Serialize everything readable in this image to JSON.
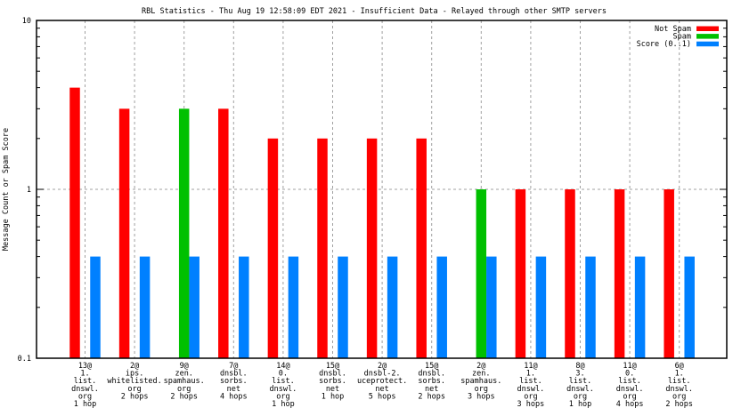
{
  "chart_data": {
    "type": "bar",
    "title": "RBL Statistics - Thu Aug 19 12:58:09 EDT 2021 - Insufficient Data - Relayed through other SMTP servers",
    "xlabel": "",
    "ylabel": "Message Count or Spam Score",
    "yscale": "log",
    "ylim": [
      0.1,
      10
    ],
    "yticks": [
      {
        "value": 10,
        "label": "10"
      },
      {
        "value": 1,
        "label": "1"
      },
      {
        "value": 0.1,
        "label": "0.1"
      }
    ],
    "grid": true,
    "legend_position": "top-right",
    "categories": [
      [
        "13@",
        "1.",
        "list.",
        "dnswl.",
        "org",
        "1 hop"
      ],
      [
        "2@",
        "ips.",
        "whitelisted.",
        "org",
        "2 hops"
      ],
      [
        "9@",
        "zen.",
        "spamhaus.",
        "org",
        "2 hops"
      ],
      [
        "7@",
        "dnsbl.",
        "sorbs.",
        "net",
        "4 hops"
      ],
      [
        "14@",
        "0.",
        "list.",
        "dnswl.",
        "org",
        "1 hop"
      ],
      [
        "15@",
        "dnsbl.",
        "sorbs.",
        "net",
        "1 hop"
      ],
      [
        "2@",
        "dnsbl-2.",
        "uceprotect.",
        "net",
        "5 hops"
      ],
      [
        "15@",
        "dnsbl.",
        "sorbs.",
        "net",
        "2 hops"
      ],
      [
        "2@",
        "zen.",
        "spamhaus.",
        "org",
        "3 hops"
      ],
      [
        "11@",
        "1.",
        "list.",
        "dnswl.",
        "org",
        "3 hops"
      ],
      [
        "8@",
        "3.",
        "list.",
        "dnswl.",
        "org",
        "1 hop"
      ],
      [
        "11@",
        "0.",
        "list.",
        "dnswl.",
        "org",
        "4 hops"
      ],
      [
        "6@",
        "1.",
        "list.",
        "dnswl.",
        "org",
        "2 hops"
      ]
    ],
    "series": [
      {
        "name": "Not Spam",
        "color": "#ff0000",
        "values": [
          4,
          3,
          0,
          3,
          2,
          2,
          2,
          2,
          0,
          1,
          1,
          1,
          1
        ]
      },
      {
        "name": "Spam",
        "color": "#00c000",
        "values": [
          0,
          0,
          3,
          0,
          0,
          0,
          0,
          0,
          1,
          0,
          0,
          0,
          0
        ]
      },
      {
        "name": "Score (0..1)",
        "color": "#0080ff",
        "values": [
          0.4,
          0.4,
          0.4,
          0.4,
          0.4,
          0.4,
          0.4,
          0.4,
          0.4,
          0.4,
          0.4,
          0.4,
          0.4
        ]
      }
    ]
  }
}
